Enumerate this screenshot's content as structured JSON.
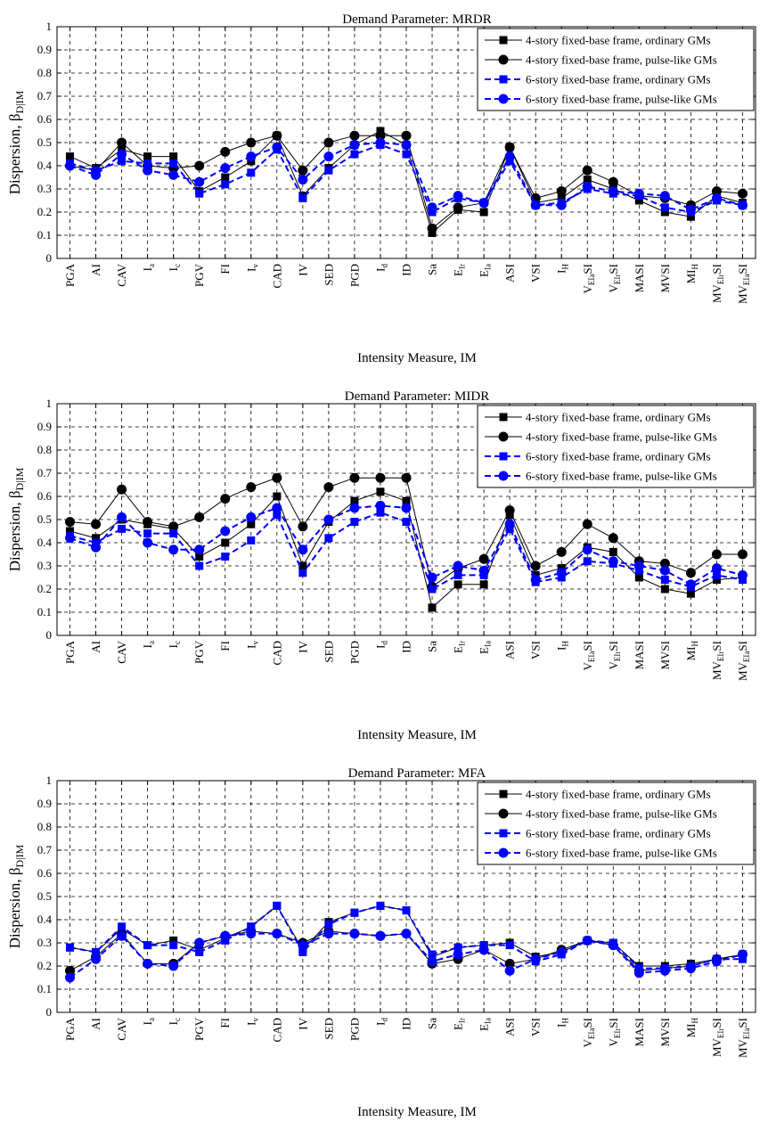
{
  "chart_data": [
    {
      "type": "line",
      "title": "Demand Parameter: MRDR",
      "xlabel": "Intensity Measure, IM",
      "ylabel": "Dispersion, βD|IM",
      "ylim": [
        0,
        1
      ],
      "yticks": [
        "0",
        "0.1",
        "0.2",
        "0.3",
        "0.4",
        "0.5",
        "0.6",
        "0.7",
        "0.8",
        "0.9",
        "1"
      ],
      "grid": true,
      "legend_position": "top-right",
      "categories": [
        "PGA",
        "AI",
        "CAV",
        "Ia",
        "Ic",
        "PGV",
        "FI",
        "Iv",
        "CAD",
        "IV",
        "SED",
        "PGD",
        "Id",
        "ID",
        "Sa",
        "EIr",
        "EIa",
        "ASI",
        "VSI",
        "IH",
        "VEIaSI",
        "VEIrSI",
        "MASI",
        "MVSI",
        "MIH",
        "MVEIrSI",
        "MVEIaSI"
      ],
      "series": [
        {
          "name": "4-story fixed-base frame, ordinary GMs",
          "color": "#000000",
          "marker": "square",
          "dash": "solid",
          "values": [
            0.44,
            0.39,
            0.47,
            0.44,
            0.44,
            0.29,
            0.35,
            0.42,
            0.53,
            0.27,
            0.39,
            0.49,
            0.55,
            0.49,
            0.11,
            0.21,
            0.2,
            0.48,
            0.24,
            0.26,
            0.34,
            0.3,
            0.25,
            0.2,
            0.18,
            0.27,
            0.24
          ]
        },
        {
          "name": "4-story fixed-base frame, pulse-like GMs",
          "color": "#000000",
          "marker": "circle",
          "dash": "solid",
          "values": [
            0.4,
            0.38,
            0.5,
            0.4,
            0.39,
            0.4,
            0.46,
            0.5,
            0.53,
            0.38,
            0.5,
            0.53,
            0.53,
            0.53,
            0.13,
            0.22,
            0.24,
            0.48,
            0.26,
            0.29,
            0.38,
            0.33,
            0.27,
            0.26,
            0.23,
            0.29,
            0.28
          ]
        },
        {
          "name": "6-story fixed-base frame, ordinary GMs",
          "color": "#0000ff",
          "marker": "square",
          "dash": "dashed",
          "values": [
            0.41,
            0.38,
            0.42,
            0.41,
            0.41,
            0.28,
            0.32,
            0.37,
            0.47,
            0.26,
            0.38,
            0.45,
            0.49,
            0.45,
            0.2,
            0.26,
            0.24,
            0.42,
            0.23,
            0.24,
            0.3,
            0.28,
            0.27,
            0.22,
            0.2,
            0.25,
            0.23
          ]
        },
        {
          "name": "6-story fixed-base frame, pulse-like GMs",
          "color": "#0000ff",
          "marker": "circle",
          "dash": "dashed",
          "values": [
            0.4,
            0.36,
            0.45,
            0.38,
            0.36,
            0.33,
            0.39,
            0.44,
            0.48,
            0.34,
            0.44,
            0.49,
            0.5,
            0.49,
            0.22,
            0.27,
            0.24,
            0.44,
            0.23,
            0.23,
            0.31,
            0.29,
            0.28,
            0.27,
            0.21,
            0.26,
            0.23
          ]
        }
      ]
    },
    {
      "type": "line",
      "title": "Demand Parameter: MIDR",
      "xlabel": "Intensity Measure, IM",
      "ylabel": "Dispersion, βD|IM",
      "ylim": [
        0,
        1
      ],
      "yticks": [
        "0",
        "0.1",
        "0.2",
        "0.3",
        "0.4",
        "0.5",
        "0.6",
        "0.7",
        "0.8",
        "0.9",
        "1"
      ],
      "grid": true,
      "legend_position": "top-right",
      "categories": [
        "PGA",
        "AI",
        "CAV",
        "Ia",
        "Ic",
        "PGV",
        "FI",
        "Iv",
        "CAD",
        "IV",
        "SED",
        "PGD",
        "Id",
        "ID",
        "Sa",
        "EIr",
        "EIa",
        "ASI",
        "VSI",
        "IH",
        "VEIaSI",
        "VEIrSI",
        "MASI",
        "MVSI",
        "MIH",
        "MVEIrSI",
        "MVEIaSI"
      ],
      "series": [
        {
          "name": "4-story fixed-base frame, ordinary GMs",
          "color": "#000000",
          "marker": "square",
          "dash": "solid",
          "values": [
            0.45,
            0.42,
            0.5,
            0.48,
            0.46,
            0.34,
            0.4,
            0.48,
            0.6,
            0.3,
            0.49,
            0.58,
            0.62,
            0.58,
            0.12,
            0.22,
            0.22,
            0.52,
            0.26,
            0.29,
            0.38,
            0.36,
            0.25,
            0.2,
            0.18,
            0.24,
            0.25
          ]
        },
        {
          "name": "4-story fixed-base frame, pulse-like GMs",
          "color": "#000000",
          "marker": "circle",
          "dash": "solid",
          "values": [
            0.49,
            0.48,
            0.63,
            0.49,
            0.47,
            0.51,
            0.59,
            0.64,
            0.68,
            0.47,
            0.64,
            0.68,
            0.68,
            0.68,
            0.21,
            0.29,
            0.33,
            0.54,
            0.3,
            0.36,
            0.48,
            0.42,
            0.32,
            0.31,
            0.27,
            0.35,
            0.35
          ]
        },
        {
          "name": "6-story fixed-base frame, ordinary GMs",
          "color": "#0000ff",
          "marker": "square",
          "dash": "dashed",
          "values": [
            0.43,
            0.4,
            0.46,
            0.44,
            0.44,
            0.3,
            0.34,
            0.41,
            0.52,
            0.27,
            0.42,
            0.49,
            0.53,
            0.49,
            0.2,
            0.26,
            0.26,
            0.46,
            0.23,
            0.25,
            0.32,
            0.31,
            0.28,
            0.24,
            0.21,
            0.26,
            0.24
          ]
        },
        {
          "name": "6-story fixed-base frame, pulse-like GMs",
          "color": "#0000ff",
          "marker": "circle",
          "dash": "dashed",
          "values": [
            0.42,
            0.38,
            0.51,
            0.4,
            0.37,
            0.37,
            0.45,
            0.51,
            0.55,
            0.37,
            0.5,
            0.55,
            0.56,
            0.55,
            0.25,
            0.3,
            0.28,
            0.48,
            0.24,
            0.27,
            0.37,
            0.32,
            0.3,
            0.28,
            0.22,
            0.29,
            0.26
          ]
        }
      ]
    },
    {
      "type": "line",
      "title": "Demand Parameter: MFA",
      "xlabel": "Intensity Measure, IM",
      "ylabel": "Dispersion, βD|IM",
      "ylim": [
        0,
        1
      ],
      "yticks": [
        "0",
        "0.1",
        "0.2",
        "0.3",
        "0.4",
        "0.5",
        "0.6",
        "0.7",
        "0.8",
        "0.9",
        "1"
      ],
      "grid": true,
      "legend_position": "top-right",
      "categories": [
        "PGA",
        "AI",
        "CAV",
        "Ia",
        "Ic",
        "PGV",
        "FI",
        "Iv",
        "CAD",
        "IV",
        "SED",
        "PGD",
        "Id",
        "ID",
        "Sa",
        "EIr",
        "EIa",
        "ASI",
        "VSI",
        "IH",
        "VEIaSI",
        "VEIrSI",
        "MASI",
        "MVSI",
        "MIH",
        "MVEIrSI",
        "MVEIaSI"
      ],
      "series": [
        {
          "name": "4-story fixed-base frame, ordinary GMs",
          "color": "#000000",
          "marker": "square",
          "dash": "solid",
          "values": [
            0.28,
            0.26,
            0.36,
            0.29,
            0.31,
            0.27,
            0.32,
            0.37,
            0.46,
            0.27,
            0.39,
            0.43,
            0.46,
            0.44,
            0.24,
            0.28,
            0.29,
            0.3,
            0.24,
            0.26,
            0.31,
            0.3,
            0.2,
            0.2,
            0.21,
            0.23,
            0.25
          ]
        },
        {
          "name": "4-story fixed-base frame, pulse-like GMs",
          "color": "#000000",
          "marker": "circle",
          "dash": "solid",
          "values": [
            0.18,
            0.24,
            0.34,
            0.21,
            0.21,
            0.3,
            0.33,
            0.35,
            0.34,
            0.3,
            0.35,
            0.34,
            0.33,
            0.34,
            0.21,
            0.23,
            0.27,
            0.21,
            0.23,
            0.27,
            0.31,
            0.29,
            0.18,
            0.19,
            0.2,
            0.23,
            0.25
          ]
        },
        {
          "name": "6-story fixed-base frame, ordinary GMs",
          "color": "#0000ff",
          "marker": "square",
          "dash": "dashed",
          "values": [
            0.28,
            0.26,
            0.37,
            0.29,
            0.29,
            0.26,
            0.31,
            0.37,
            0.46,
            0.26,
            0.38,
            0.43,
            0.46,
            0.44,
            0.25,
            0.28,
            0.29,
            0.29,
            0.22,
            0.25,
            0.31,
            0.3,
            0.19,
            0.19,
            0.2,
            0.23,
            0.23
          ]
        },
        {
          "name": "6-story fixed-base frame, pulse-like GMs",
          "color": "#0000ff",
          "marker": "circle",
          "dash": "dashed",
          "values": [
            0.15,
            0.23,
            0.33,
            0.21,
            0.2,
            0.3,
            0.33,
            0.34,
            0.34,
            0.29,
            0.34,
            0.34,
            0.33,
            0.34,
            0.22,
            0.25,
            0.27,
            0.18,
            0.23,
            0.26,
            0.31,
            0.29,
            0.17,
            0.18,
            0.19,
            0.22,
            0.25
          ]
        }
      ]
    }
  ]
}
